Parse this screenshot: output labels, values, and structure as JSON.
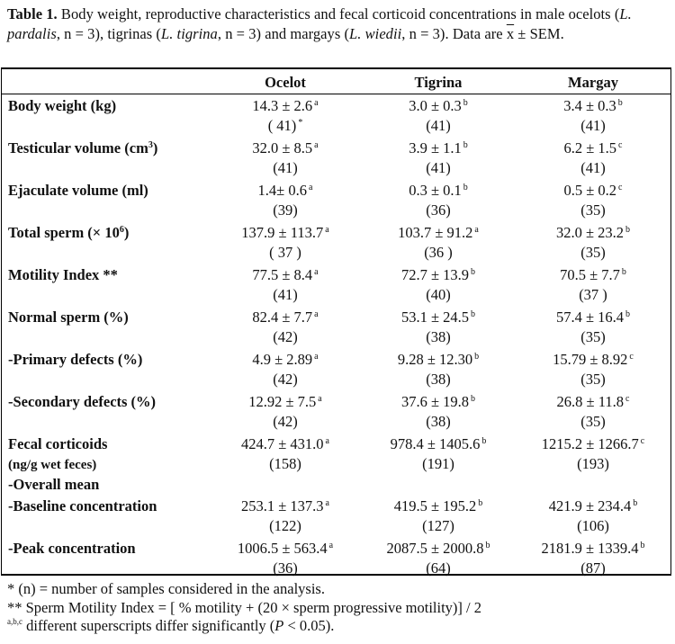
{
  "caption": {
    "label": "Table 1.",
    "text_a": " Body weight, reproductive characteristics  and  fecal  corticoid concentrations in  male  ocelots (",
    "sp1": "L. pardalis",
    "text_b": ", n = 3), tigrinas (",
    "sp2": "L. tigrina",
    "text_c": ", n = 3) and margays (",
    "sp3": "L. wiedii",
    "text_d": ", n = 3). Data are ",
    "xbar": "x",
    "text_e": " ± SEM."
  },
  "columns": [
    "Ocelot",
    "Tigrina",
    "Margay"
  ],
  "rows": [
    {
      "label": "Body weight (kg)",
      "label_sup": "",
      "values": [
        {
          "v": "14.3 ± 2.6",
          "s": "a",
          "n": "( 41)",
          "ns": "*"
        },
        {
          "v": "3.0 ± 0.3",
          "s": "b",
          "n": "(41)",
          "ns": ""
        },
        {
          "v": "3.4 ± 0.3",
          "s": "b",
          "n": "(41)",
          "ns": ""
        }
      ]
    },
    {
      "label": "Testicular  volume (cm",
      "label_sup": "3",
      "label_end": ")",
      "values": [
        {
          "v": "32.0 ± 8.5",
          "s": "a",
          "n": "(41)",
          "ns": ""
        },
        {
          "v": "3.9 ± 1.1",
          "s": "b",
          "n": "(41)",
          "ns": ""
        },
        {
          "v": "6.2 ± 1.5",
          "s": "c",
          "n": "(41)",
          "ns": ""
        }
      ]
    },
    {
      "label": "Ejaculate volume (ml)",
      "label_sup": "",
      "values": [
        {
          "v": "1.4± 0.6",
          "s": "a",
          "n": "(39)",
          "ns": ""
        },
        {
          "v": "0.3 ± 0.1",
          "s": "b",
          "n": "(36)",
          "ns": ""
        },
        {
          "v": "0.5 ± 0.2",
          "s": "c",
          "n": "(35)",
          "ns": ""
        }
      ]
    },
    {
      "label": "Total sperm (× 10",
      "label_sup": "6",
      "label_end": ")",
      "values": [
        {
          "v": "137.9 ± 113.7",
          "s": "a",
          "n": "( 37 )",
          "ns": ""
        },
        {
          "v": "103.7 ± 91.2",
          "s": "a",
          "n": "(36 )",
          "ns": ""
        },
        {
          "v": "32.0 ± 23.2",
          "s": "b",
          "n": "(35)",
          "ns": ""
        }
      ]
    },
    {
      "label": "Motility Index **",
      "label_sup": "",
      "values": [
        {
          "v": "77.5 ± 8.4",
          "s": "a",
          "n": "(41)",
          "ns": ""
        },
        {
          "v": "72.7 ± 13.9",
          "s": "b",
          "n": "(40)",
          "ns": ""
        },
        {
          "v": "70.5 ± 7.7",
          "s": "b",
          "n": "(37 )",
          "ns": ""
        }
      ]
    },
    {
      "label": "Normal sperm (%)",
      "label_sup": "",
      "values": [
        {
          "v": "82.4 ± 7.7",
          "s": "a",
          "n": "(42)",
          "ns": ""
        },
        {
          "v": "53.1 ± 24.5",
          "s": "b",
          "n": "(38)",
          "ns": ""
        },
        {
          "v": "57.4 ± 16.4",
          "s": "b",
          "n": "(35)",
          "ns": ""
        }
      ]
    },
    {
      "label": " -Primary defects (%)",
      "label_sup": "",
      "values": [
        {
          "v": "4.9 ± 2.89",
          "s": "a",
          "n": "(42)",
          "ns": ""
        },
        {
          "v": "9.28 ± 12.30",
          "s": "b",
          "n": "(38)",
          "ns": ""
        },
        {
          "v": "15.79 ± 8.92",
          "s": "c",
          "n": "(35)",
          "ns": ""
        }
      ]
    },
    {
      "label": " -Secondary defects (%)",
      "label_sup": "",
      "values": [
        {
          "v": "12.92 ± 7.5",
          "s": "a",
          "n": "(42)",
          "ns": ""
        },
        {
          "v": "37.6 ± 19.8",
          "s": "b",
          "n": "(38)",
          "ns": ""
        },
        {
          "v": "26.8 ± 11.8",
          "s": "c",
          "n": "(35)",
          "ns": ""
        }
      ]
    },
    {
      "label": "Fecal corticoids",
      "label2": "(ng/g wet feces)",
      "label3": " -Overall mean",
      "label_sup": "",
      "values": [
        {
          "v": "424.7 ± 431.0",
          "s": "a",
          "n": "(158)",
          "ns": ""
        },
        {
          "v": "978.4 ± 1405.6",
          "s": "b",
          "n": "(191)",
          "ns": ""
        },
        {
          "v": "1215.2 ± 1266.7",
          "s": "c",
          "n": "(193)",
          "ns": ""
        }
      ]
    },
    {
      "label": " -Baseline concentration",
      "label_sup": "",
      "values": [
        {
          "v": "253.1 ± 137.3",
          "s": "a",
          "n": "(122)",
          "ns": ""
        },
        {
          "v": "419.5 ± 195.2",
          "s": "b",
          "n": "(127)",
          "ns": ""
        },
        {
          "v": "421.9 ± 234.4",
          "s": "b",
          "n": "(106)",
          "ns": ""
        }
      ]
    },
    {
      "label": " -Peak concentration",
      "label_sup": "",
      "values": [
        {
          "v": "1006.5 ± 563.4",
          "s": "a",
          "n": "(36)",
          "ns": ""
        },
        {
          "v": "2087.5 ± 2000.8",
          "s": "b",
          "n": "(64)",
          "ns": ""
        },
        {
          "v": "2181.9 ± 1339.4",
          "s": "b",
          "n": "(87)",
          "ns": ""
        }
      ]
    }
  ],
  "footnotes": {
    "f1": "* (n) = number of samples considered in the analysis.",
    "f2": "** Sperm Motility Index = [ % motility + (20 × sperm progressive motility)] / 2",
    "f3_sup": "a,b,c",
    "f3_text": " different superscripts differ significantly (",
    "f3_p": "P",
    "f3_end": " < 0.05)."
  }
}
